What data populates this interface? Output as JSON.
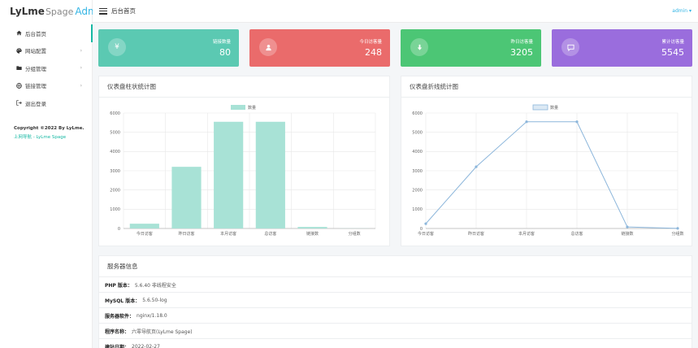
{
  "logo": {
    "part1": "LyLme",
    "part2": "Spage",
    "part3": "Admin"
  },
  "header": {
    "title": "后台首页",
    "user": "admin ▾"
  },
  "sidebar": {
    "items": [
      {
        "label": "后台首页",
        "icon": "home-icon"
      },
      {
        "label": "网站配置",
        "icon": "palette-icon"
      },
      {
        "label": "分组管理",
        "icon": "folder-icon"
      },
      {
        "label": "链接管理",
        "icon": "globe-icon"
      },
      {
        "label": "退出登录",
        "icon": "logout-icon"
      }
    ],
    "copyright": "Copyright ©2022 By LyLme.",
    "copyright_link": "上网导航 - LyLme Spage"
  },
  "cards": [
    {
      "label": "链接数量",
      "value": "80",
      "color": "#5bc9b2",
      "icon": "¥"
    },
    {
      "label": "今日访客量",
      "value": "248",
      "color": "#ea6b6b",
      "icon": "user"
    },
    {
      "label": "昨日访客量",
      "value": "3205",
      "color": "#4cc675",
      "icon": "download"
    },
    {
      "label": "累计访客量",
      "value": "5545",
      "color": "#9a6ddd",
      "icon": "chat"
    }
  ],
  "bar_panel": {
    "title": "仪表盘柱状统计图"
  },
  "line_panel": {
    "title": "仪表盘折线统计图"
  },
  "chart_data": [
    {
      "type": "bar",
      "categories": [
        "今日访客",
        "昨日访客",
        "本月访客",
        "总访客",
        "链接数",
        "分组数"
      ],
      "series": [
        {
          "name": "数量",
          "values": [
            248,
            3205,
            5545,
            5545,
            80,
            6
          ]
        }
      ],
      "ylim": [
        0,
        6000
      ],
      "yticks": [
        0,
        1000,
        2000,
        3000,
        4000,
        5000,
        6000
      ],
      "legend": "top",
      "color": "#a8e2d6"
    },
    {
      "type": "line",
      "categories": [
        "今日访客",
        "昨日访客",
        "本月访客",
        "总访客",
        "链接数",
        "分组数"
      ],
      "series": [
        {
          "name": "数量",
          "values": [
            248,
            3205,
            5545,
            5545,
            80,
            6
          ]
        }
      ],
      "ylim": [
        0,
        6000
      ],
      "yticks": [
        0,
        1000,
        2000,
        3000,
        4000,
        5000,
        6000
      ],
      "legend": "top",
      "color": "#8cb6db"
    }
  ],
  "server": {
    "title": "服务器信息",
    "rows": [
      {
        "key": "PHP 版本：",
        "value": "5.6.40 非线程安全"
      },
      {
        "key": "MySQL 版本：",
        "value": "5.6.50-log"
      },
      {
        "key": "服务器软件：",
        "value": "nginx/1.18.0"
      },
      {
        "key": "程序名称：",
        "value": "六零导航页(LyLme Spage)"
      },
      {
        "key": "建站日期：",
        "value": "2022-02-27"
      }
    ]
  }
}
